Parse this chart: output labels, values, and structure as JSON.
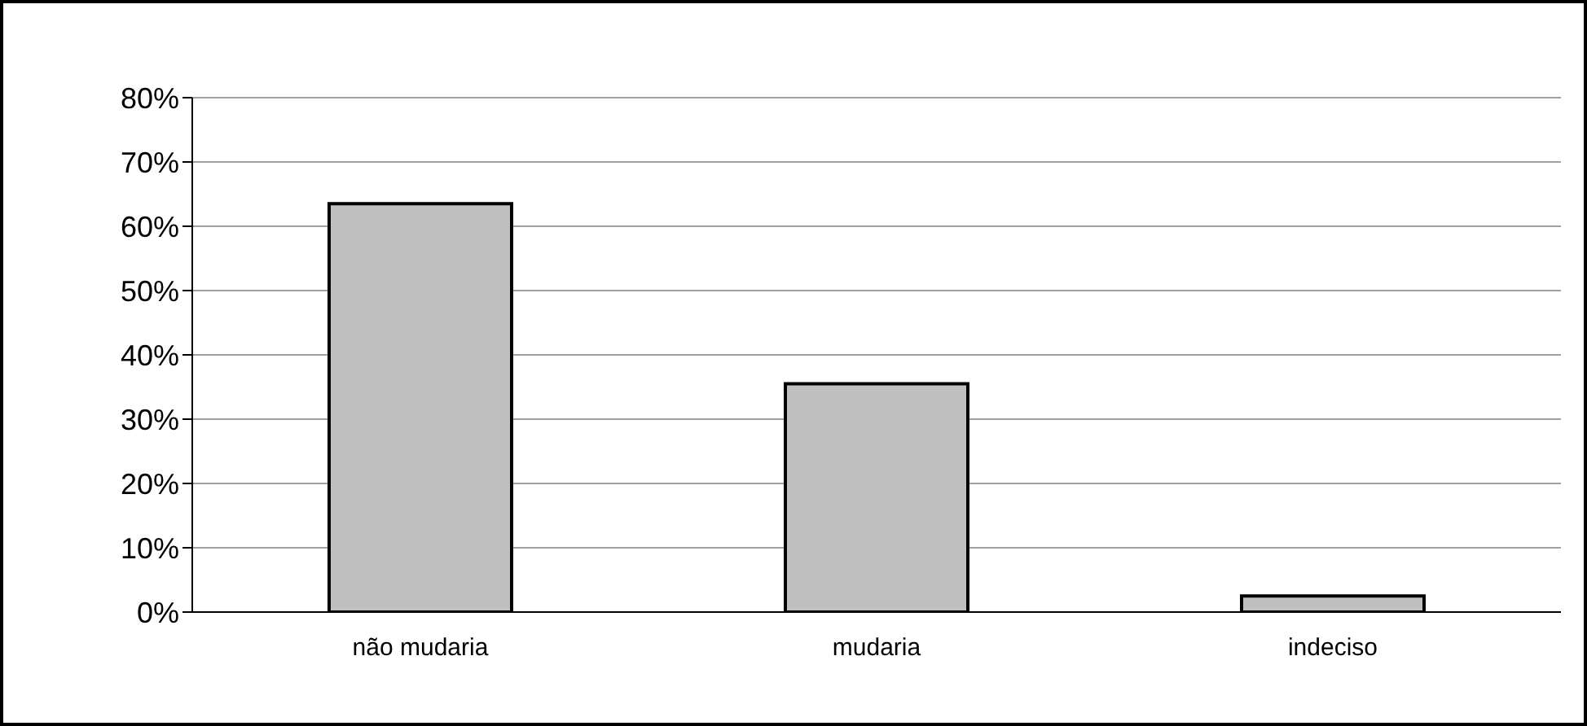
{
  "chart_data": {
    "type": "bar",
    "categories": [
      "não mudaria",
      "mudaria",
      "indeciso"
    ],
    "values": [
      63.5,
      35.5,
      2.5
    ],
    "color": "#c0c0c0",
    "ylim": [
      0,
      80
    ],
    "yticks": [
      {
        "value": 0,
        "label": "0%"
      },
      {
        "value": 10,
        "label": "10%"
      },
      {
        "value": 20,
        "label": "20%"
      },
      {
        "value": 30,
        "label": "30%"
      },
      {
        "value": 40,
        "label": "40%"
      },
      {
        "value": 50,
        "label": "50%"
      },
      {
        "value": 60,
        "label": "60%"
      },
      {
        "value": 70,
        "label": "70%"
      },
      {
        "value": 80,
        "label": "80%"
      }
    ],
    "grid": "y",
    "legend": false
  }
}
